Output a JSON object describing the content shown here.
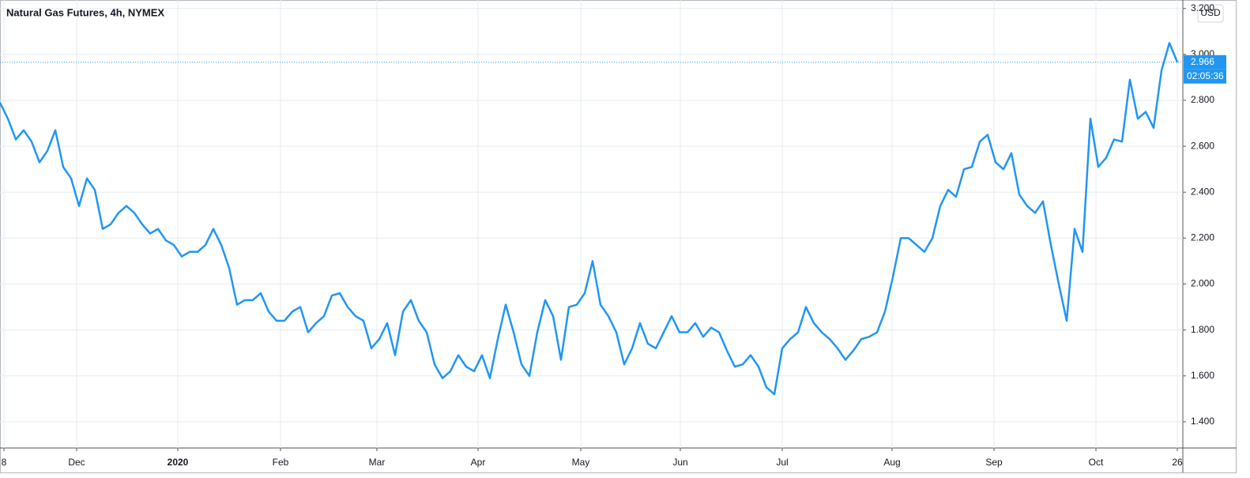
{
  "chart_data": {
    "type": "line",
    "title": "Natural Gas Futures, 4h, NYMEX",
    "currency": "USD",
    "countdown": "02:05:36",
    "grid": true,
    "xlim": [
      0,
      149.7
    ],
    "xticks": [
      {
        "value": 0.5,
        "label": "8"
      },
      {
        "value": 9.7,
        "label": "Dec"
      },
      {
        "value": 22.5,
        "label": "2020"
      },
      {
        "value": 35.5,
        "label": "Feb"
      },
      {
        "value": 47.7,
        "label": "Mar"
      },
      {
        "value": 60.5,
        "label": "Apr"
      },
      {
        "value": 73.5,
        "label": "May"
      },
      {
        "value": 86.1,
        "label": "Jun"
      },
      {
        "value": 99,
        "label": "Jul"
      },
      {
        "value": 112.9,
        "label": "Aug"
      },
      {
        "value": 125.8,
        "label": "Sep"
      },
      {
        "value": 138.7,
        "label": "Oct"
      },
      {
        "value": 149,
        "label": "26"
      }
    ],
    "ylim": [
      1.286,
      3.237
    ],
    "yticks": [
      {
        "value": 1.4,
        "label": "1.400"
      },
      {
        "value": 1.6,
        "label": "1.600"
      },
      {
        "value": 1.8,
        "label": "1.800"
      },
      {
        "value": 2.0,
        "label": "2.000"
      },
      {
        "value": 2.2,
        "label": "2.200"
      },
      {
        "value": 2.4,
        "label": "2.400"
      },
      {
        "value": 2.6,
        "label": "2.600"
      },
      {
        "value": 2.8,
        "label": "2.800"
      },
      {
        "value": 3.0,
        "label": "3.000"
      },
      {
        "value": 3.2,
        "label": "3.200"
      }
    ],
    "series": [
      {
        "color": "#2196f3",
        "values": [
          2.79,
          2.72,
          2.63,
          2.67,
          2.62,
          2.53,
          2.58,
          2.67,
          2.51,
          2.46,
          2.34,
          2.46,
          2.41,
          2.24,
          2.26,
          2.31,
          2.34,
          2.31,
          2.26,
          2.22,
          2.24,
          2.19,
          2.17,
          2.12,
          2.14,
          2.14,
          2.17,
          2.24,
          2.17,
          2.07,
          1.91,
          1.93,
          1.93,
          1.96,
          1.88,
          1.84,
          1.84,
          1.88,
          1.9,
          1.79,
          1.83,
          1.86,
          1.95,
          1.96,
          1.9,
          1.86,
          1.84,
          1.72,
          1.76,
          1.83,
          1.69,
          1.88,
          1.93,
          1.84,
          1.79,
          1.65,
          1.59,
          1.62,
          1.69,
          1.64,
          1.62,
          1.69,
          1.59,
          1.76,
          1.91,
          1.79,
          1.65,
          1.6,
          1.79,
          1.93,
          1.86,
          1.67,
          1.9,
          1.91,
          1.96,
          2.1,
          1.91,
          1.86,
          1.79,
          1.65,
          1.72,
          1.83,
          1.74,
          1.72,
          1.79,
          1.86,
          1.79,
          1.79,
          1.83,
          1.77,
          1.81,
          1.79,
          1.71,
          1.64,
          1.65,
          1.69,
          1.64,
          1.55,
          1.52,
          1.72,
          1.76,
          1.79,
          1.9,
          1.83,
          1.79,
          1.76,
          1.72,
          1.67,
          1.71,
          1.76,
          1.77,
          1.79,
          1.88,
          2.03,
          2.2,
          2.2,
          2.17,
          2.14,
          2.2,
          2.34,
          2.41,
          2.38,
          2.5,
          2.51,
          2.62,
          2.65,
          2.53,
          2.5,
          2.57,
          2.39,
          2.34,
          2.31,
          2.36,
          2.17,
          2.0,
          1.84,
          2.24,
          2.14,
          2.72,
          2.51,
          2.55,
          2.63,
          2.62,
          2.89,
          2.72,
          2.75,
          2.68,
          2.93,
          3.05,
          2.966
        ]
      }
    ]
  }
}
